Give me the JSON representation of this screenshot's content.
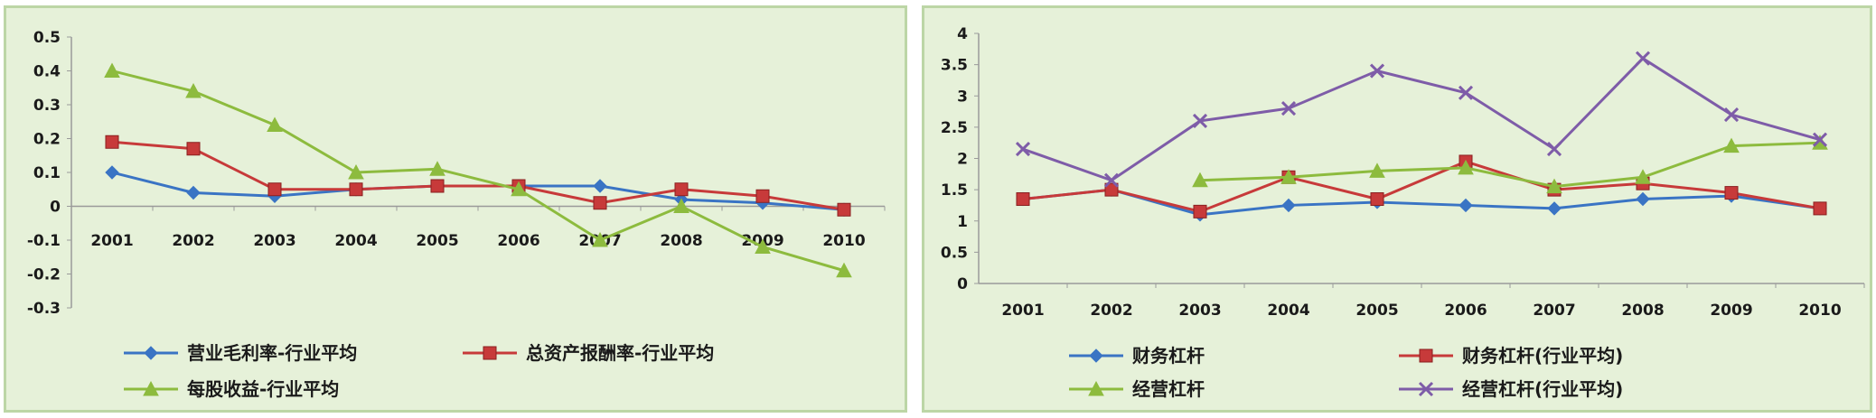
{
  "chart_data": [
    {
      "type": "line",
      "title": "",
      "xlabel": "",
      "ylabel": "",
      "categories": [
        "2001",
        "2002",
        "2003",
        "2004",
        "2005",
        "2006",
        "2007",
        "2008",
        "2009",
        "2010"
      ],
      "ylim": [
        -0.3,
        0.5
      ],
      "yticks": [
        "0.5",
        "0.4",
        "0.3",
        "0.2",
        "0.1",
        "0",
        "-0.1",
        "-0.2",
        "-0.3"
      ],
      "legend": "bottom",
      "grid": false,
      "series": [
        {
          "name": "营业毛利率-行业平均",
          "color": "#3a74c4",
          "marker": "diamond",
          "values": [
            0.1,
            0.04,
            0.03,
            0.05,
            0.06,
            0.06,
            0.06,
            0.02,
            0.01,
            -0.01
          ]
        },
        {
          "name": "总资产报酬率-行业平均",
          "color": "#c73a3a",
          "marker": "square",
          "values": [
            0.19,
            0.17,
            0.05,
            0.05,
            0.06,
            0.06,
            0.01,
            0.05,
            0.03,
            -0.01
          ]
        },
        {
          "name": "每股收益-行业平均",
          "color": "#8dbb3e",
          "marker": "triangle",
          "values": [
            0.4,
            0.34,
            0.24,
            0.1,
            0.11,
            0.05,
            -0.1,
            0.0,
            -0.12,
            -0.19
          ]
        }
      ]
    },
    {
      "type": "line",
      "title": "",
      "xlabel": "",
      "ylabel": "",
      "categories": [
        "2001",
        "2002",
        "2003",
        "2004",
        "2005",
        "2006",
        "2007",
        "2008",
        "2009",
        "2010"
      ],
      "ylim": [
        0,
        4
      ],
      "yticks": [
        "4",
        "3.5",
        "3",
        "2.5",
        "2",
        "1.5",
        "1",
        "0.5",
        "0"
      ],
      "legend": "bottom",
      "grid": false,
      "series": [
        {
          "name": "财务杠杆",
          "color": "#3a74c4",
          "marker": "diamond",
          "values": [
            1.35,
            1.5,
            1.1,
            1.25,
            1.3,
            1.25,
            1.2,
            1.35,
            1.4,
            1.2
          ]
        },
        {
          "name": "财务杠杆(行业平均)",
          "color": "#c73a3a",
          "marker": "square",
          "values": [
            1.35,
            1.5,
            1.15,
            1.7,
            1.35,
            1.95,
            1.5,
            1.6,
            1.45,
            1.2
          ]
        },
        {
          "name": "经营杠杆",
          "color": "#8dbb3e",
          "marker": "triangle",
          "values": [
            null,
            null,
            1.65,
            1.7,
            1.8,
            1.85,
            1.55,
            1.7,
            2.2,
            2.25
          ]
        },
        {
          "name": "经营杠杆(行业平均)",
          "color": "#7e5ca8",
          "marker": "x",
          "values": [
            2.15,
            1.65,
            2.6,
            2.8,
            3.4,
            3.05,
            2.15,
            3.6,
            2.7,
            2.3
          ]
        }
      ]
    }
  ]
}
